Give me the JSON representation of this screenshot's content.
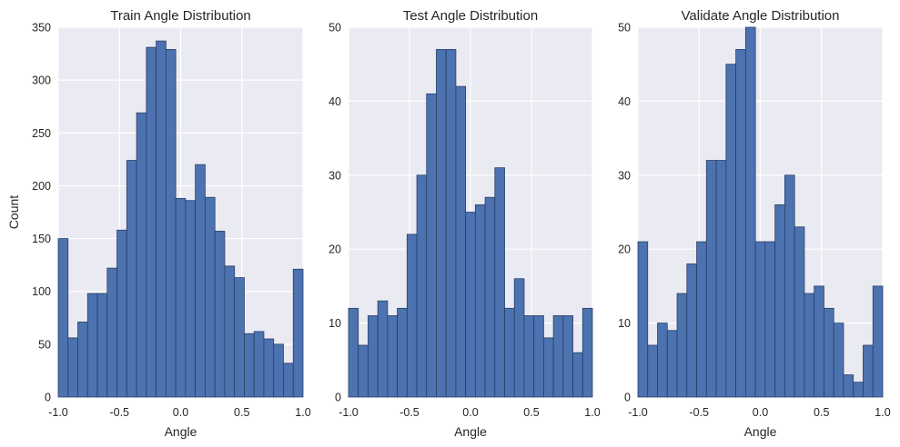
{
  "colors": {
    "background": "#eaeaf2",
    "grid": "#ffffff",
    "bar_fill": "#4c72b0",
    "bar_edge": "#2a3f66",
    "text": "#262626"
  },
  "chart_data": [
    {
      "type": "bar",
      "title": "Train Angle Distribution",
      "xlabel": "Angle",
      "ylabel": "Count",
      "xlim": [
        -1.0,
        1.0
      ],
      "ylim": [
        0,
        350
      ],
      "xticks": [
        "-1.0",
        "-0.5",
        "0.0",
        "0.5",
        "1.0"
      ],
      "yticks": [
        "0",
        "50",
        "100",
        "150",
        "200",
        "250",
        "300",
        "350"
      ],
      "grid": true,
      "bin_edges": [
        -1.0,
        -0.92,
        -0.84,
        -0.76,
        -0.68,
        -0.6,
        -0.52,
        -0.44,
        -0.36,
        -0.28,
        -0.2,
        -0.12,
        -0.04,
        0.04,
        0.12,
        0.2,
        0.28,
        0.36,
        0.44,
        0.52,
        0.6,
        0.68,
        0.76,
        0.84,
        0.92,
        1.0
      ],
      "values": [
        150,
        56,
        71,
        98,
        98,
        122,
        158,
        224,
        269,
        331,
        337,
        329,
        188,
        186,
        220,
        189,
        157,
        124,
        113,
        60,
        62,
        55,
        50,
        32,
        121
      ]
    },
    {
      "type": "bar",
      "title": "Test Angle Distribution",
      "xlabel": "Angle",
      "ylabel": "",
      "xlim": [
        -1.0,
        1.0
      ],
      "ylim": [
        0,
        50
      ],
      "xticks": [
        "-1.0",
        "-0.5",
        "0.0",
        "0.5",
        "1.0"
      ],
      "yticks": [
        "0",
        "10",
        "20",
        "30",
        "40",
        "50"
      ],
      "grid": true,
      "bin_edges": [
        -1.0,
        -0.92,
        -0.84,
        -0.76,
        -0.68,
        -0.6,
        -0.52,
        -0.44,
        -0.36,
        -0.28,
        -0.2,
        -0.12,
        -0.04,
        0.04,
        0.12,
        0.2,
        0.28,
        0.36,
        0.44,
        0.52,
        0.6,
        0.68,
        0.76,
        0.84,
        0.92,
        1.0
      ],
      "values": [
        12,
        7,
        11,
        13,
        11,
        12,
        22,
        30,
        41,
        47,
        47,
        42,
        25,
        26,
        27,
        31,
        12,
        16,
        11,
        11,
        8,
        11,
        11,
        6,
        12
      ]
    },
    {
      "type": "bar",
      "title": "Validate Angle Distribution",
      "xlabel": "Angle",
      "ylabel": "",
      "xlim": [
        -1.0,
        1.0
      ],
      "ylim": [
        0,
        50
      ],
      "xticks": [
        "-1.0",
        "-0.5",
        "0.0",
        "0.5",
        "1.0"
      ],
      "yticks": [
        "0",
        "10",
        "20",
        "30",
        "40",
        "50"
      ],
      "grid": true,
      "bin_edges": [
        -1.0,
        -0.92,
        -0.84,
        -0.76,
        -0.68,
        -0.6,
        -0.52,
        -0.44,
        -0.36,
        -0.28,
        -0.2,
        -0.12,
        -0.04,
        0.04,
        0.12,
        0.2,
        0.28,
        0.36,
        0.44,
        0.52,
        0.6,
        0.68,
        0.76,
        0.84,
        0.92,
        1.0
      ],
      "values": [
        21,
        7,
        10,
        9,
        14,
        18,
        21,
        32,
        32,
        45,
        47,
        50,
        21,
        21,
        26,
        30,
        23,
        14,
        15,
        12,
        10,
        3,
        2,
        7,
        15
      ]
    }
  ]
}
